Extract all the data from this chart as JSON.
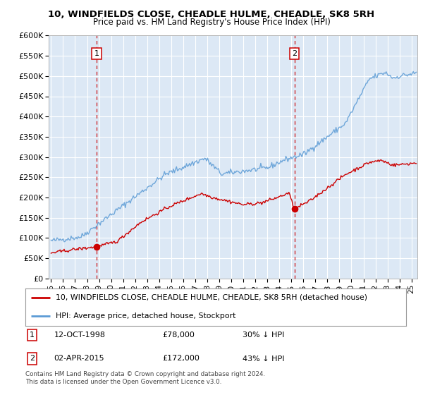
{
  "title1": "10, WINDFIELDS CLOSE, CHEADLE HULME, CHEADLE, SK8 5RH",
  "title2": "Price paid vs. HM Land Registry's House Price Index (HPI)",
  "legend_label_red": "10, WINDFIELDS CLOSE, CHEADLE HULME, CHEADLE, SK8 5RH (detached house)",
  "legend_label_blue": "HPI: Average price, detached house, Stockport",
  "annotation1": {
    "label": "1",
    "date": "12-OCT-1998",
    "price": 78000,
    "pct": "30% ↓ HPI",
    "x_year": 1998.79
  },
  "annotation2": {
    "label": "2",
    "date": "02-APR-2015",
    "price": 172000,
    "pct": "43% ↓ HPI",
    "x_year": 2015.25
  },
  "footer": "Contains HM Land Registry data © Crown copyright and database right 2024.\nThis data is licensed under the Open Government Licence v3.0.",
  "ylim": [
    0,
    600000
  ],
  "yticks": [
    0,
    50000,
    100000,
    150000,
    200000,
    250000,
    300000,
    350000,
    400000,
    450000,
    500000,
    550000,
    600000
  ],
  "ytick_labels": [
    "£0",
    "£50K",
    "£100K",
    "£150K",
    "£200K",
    "£250K",
    "£300K",
    "£350K",
    "£400K",
    "£450K",
    "£500K",
    "£550K",
    "£600K"
  ],
  "xlim_start": 1994.8,
  "xlim_end": 2025.5,
  "red_color": "#cc0000",
  "blue_color": "#5b9bd5",
  "vline_color": "#cc0000",
  "plot_bg": "#dce8f5",
  "grid_color": "#ffffff"
}
